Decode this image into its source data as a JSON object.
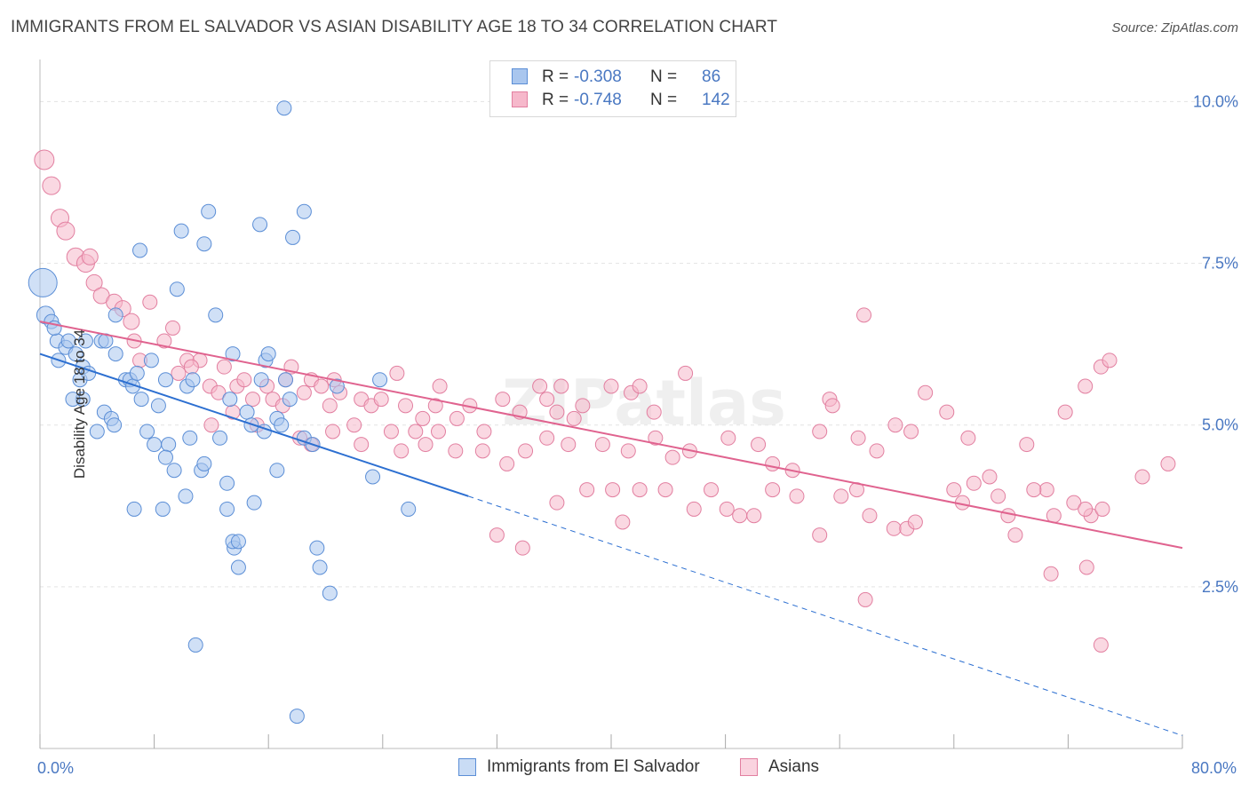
{
  "title": "IMMIGRANTS FROM EL SALVADOR VS ASIAN DISABILITY AGE 18 TO 34 CORRELATION CHART",
  "source": "Source: ZipAtlas.com",
  "watermark": "ZIPatlas",
  "legend_top": {
    "rows": [
      {
        "r_label": "R =",
        "r_value": "-0.308",
        "n_label": "N =",
        "n_value": "86"
      },
      {
        "r_label": "R =",
        "r_value": "-0.748",
        "n_label": "N =",
        "n_value": "142"
      }
    ]
  },
  "legend_bottom": {
    "items": [
      {
        "label": "Immigrants from El Salvador"
      },
      {
        "label": "Asians"
      }
    ]
  },
  "colors": {
    "blue_fill": "#a9c6ee",
    "blue_stroke": "#5b8ed6",
    "blue_line": "#2c6fd1",
    "pink_fill": "#f6b8cb",
    "pink_stroke": "#e27fa0",
    "pink_line": "#e0638f",
    "tick_label": "#4a78c2",
    "grid": "#e3e3e3"
  },
  "chart_data": {
    "type": "scatter",
    "title": "IMMIGRANTS FROM EL SALVADOR VS ASIAN DISABILITY AGE 18 TO 34 CORRELATION CHART",
    "xlabel": "",
    "ylabel": "Disability Age 18 to 34",
    "xlim": [
      0,
      80
    ],
    "ylim": [
      0,
      10.5
    ],
    "x_tick_labels": [
      "0.0%",
      "80.0%"
    ],
    "y_ticks": [
      2.5,
      5.0,
      7.5,
      10.0
    ],
    "y_tick_labels": [
      "2.5%",
      "5.0%",
      "7.5%",
      "10.0%"
    ],
    "grid": true,
    "legend_position": "top-center",
    "series": [
      {
        "name": "Immigrants from El Salvador",
        "color": "#a9c6ee",
        "R": -0.308,
        "N": 86,
        "trend": {
          "x0": 0,
          "y0": 6.1,
          "x1": 30,
          "y1": 3.9,
          "dashed_to_x": 80,
          "dashed_to_y": 0.2
        },
        "points": [
          [
            0.2,
            7.2,
            16
          ],
          [
            0.4,
            6.7,
            10
          ],
          [
            0.8,
            6.6,
            8
          ],
          [
            1.2,
            6.3,
            8
          ],
          [
            1.0,
            6.5,
            8
          ],
          [
            1.8,
            6.2,
            8
          ],
          [
            2.0,
            6.3,
            8
          ],
          [
            2.5,
            6.1,
            8
          ],
          [
            1.3,
            6.0,
            8
          ],
          [
            3.2,
            6.3,
            8
          ],
          [
            3.0,
            5.9,
            8
          ],
          [
            2.8,
            5.7,
            8
          ],
          [
            3.4,
            5.8,
            8
          ],
          [
            3.0,
            5.4,
            8
          ],
          [
            2.3,
            5.4,
            8
          ],
          [
            4.3,
            6.3,
            8
          ],
          [
            4.6,
            6.3,
            8
          ],
          [
            5.3,
            6.7,
            8
          ],
          [
            5.3,
            6.1,
            8
          ],
          [
            6.0,
            5.7,
            8
          ],
          [
            6.3,
            5.7,
            8
          ],
          [
            6.5,
            5.6,
            8
          ],
          [
            6.8,
            5.8,
            8
          ],
          [
            7.1,
            5.4,
            8
          ],
          [
            7.8,
            6.0,
            8
          ],
          [
            4.5,
            5.2,
            8
          ],
          [
            5.0,
            5.1,
            8
          ],
          [
            5.2,
            5.0,
            8
          ],
          [
            4.0,
            4.9,
            8
          ],
          [
            7.5,
            4.9,
            8
          ],
          [
            8.3,
            5.3,
            8
          ],
          [
            8.8,
            5.7,
            8
          ],
          [
            10.3,
            5.6,
            8
          ],
          [
            10.7,
            5.7,
            8
          ],
          [
            7.0,
            7.7,
            8
          ],
          [
            9.6,
            7.1,
            8
          ],
          [
            9.9,
            8.0,
            8
          ],
          [
            11.5,
            7.8,
            8
          ],
          [
            11.8,
            8.3,
            8
          ],
          [
            12.3,
            6.7,
            8
          ],
          [
            13.5,
            6.1,
            8
          ],
          [
            15.4,
            8.1,
            8
          ],
          [
            17.7,
            7.9,
            8
          ],
          [
            18.5,
            8.3,
            8
          ],
          [
            17.1,
            9.9,
            8
          ],
          [
            15.8,
            6.0,
            8
          ],
          [
            16.0,
            6.1,
            8
          ],
          [
            15.5,
            5.7,
            8
          ],
          [
            13.3,
            5.4,
            8
          ],
          [
            14.5,
            5.2,
            8
          ],
          [
            14.8,
            5.0,
            8
          ],
          [
            15.7,
            4.9,
            8
          ],
          [
            16.6,
            5.1,
            8
          ],
          [
            16.9,
            5.0,
            8
          ],
          [
            17.5,
            5.4,
            8
          ],
          [
            17.2,
            5.7,
            8
          ],
          [
            18.5,
            4.8,
            8
          ],
          [
            19.1,
            4.7,
            8
          ],
          [
            20.8,
            5.6,
            8
          ],
          [
            23.8,
            5.7,
            8
          ],
          [
            8.0,
            4.7,
            8
          ],
          [
            9.0,
            4.7,
            8
          ],
          [
            8.8,
            4.5,
            8
          ],
          [
            9.4,
            4.3,
            8
          ],
          [
            10.5,
            4.8,
            8
          ],
          [
            11.3,
            4.3,
            8
          ],
          [
            11.5,
            4.4,
            8
          ],
          [
            12.6,
            4.8,
            8
          ],
          [
            13.1,
            4.1,
            8
          ],
          [
            10.2,
            3.9,
            8
          ],
          [
            6.6,
            3.7,
            8
          ],
          [
            8.6,
            3.7,
            8
          ],
          [
            13.1,
            3.7,
            8
          ],
          [
            15.0,
            3.8,
            8
          ],
          [
            16.6,
            4.3,
            8
          ],
          [
            13.6,
            3.1,
            8
          ],
          [
            13.5,
            3.2,
            8
          ],
          [
            13.9,
            3.2,
            8
          ],
          [
            13.9,
            2.8,
            8
          ],
          [
            19.4,
            3.1,
            8
          ],
          [
            19.6,
            2.8,
            8
          ],
          [
            20.3,
            2.4,
            8
          ],
          [
            23.3,
            4.2,
            8
          ],
          [
            25.8,
            3.7,
            8
          ],
          [
            10.9,
            1.6,
            8
          ],
          [
            18.0,
            0.5,
            8
          ]
        ]
      },
      {
        "name": "Asians",
        "color": "#f6b8cb",
        "R": -0.748,
        "N": 142,
        "trend": {
          "x0": 0,
          "y0": 6.6,
          "x1": 80,
          "y1": 3.1
        },
        "points": [
          [
            0.3,
            9.1,
            11
          ],
          [
            0.8,
            8.7,
            10
          ],
          [
            1.4,
            8.2,
            10
          ],
          [
            1.8,
            8.0,
            10
          ],
          [
            2.5,
            7.6,
            10
          ],
          [
            3.2,
            7.5,
            10
          ],
          [
            3.5,
            7.6,
            9
          ],
          [
            3.8,
            7.2,
            9
          ],
          [
            4.3,
            7.0,
            9
          ],
          [
            5.2,
            6.9,
            9
          ],
          [
            5.8,
            6.8,
            9
          ],
          [
            6.4,
            6.6,
            9
          ],
          [
            7.7,
            6.9,
            8
          ],
          [
            6.6,
            6.3,
            8
          ],
          [
            7.0,
            6.0,
            8
          ],
          [
            8.7,
            6.3,
            8
          ],
          [
            9.3,
            6.5,
            8
          ],
          [
            10.3,
            6.0,
            8
          ],
          [
            11.2,
            6.0,
            8
          ],
          [
            9.7,
            5.8,
            8
          ],
          [
            10.6,
            5.9,
            8
          ],
          [
            11.9,
            5.6,
            8
          ],
          [
            12.5,
            5.5,
            8
          ],
          [
            12.9,
            5.9,
            8
          ],
          [
            13.8,
            5.6,
            8
          ],
          [
            14.3,
            5.7,
            8
          ],
          [
            14.9,
            5.4,
            8
          ],
          [
            15.9,
            5.6,
            8
          ],
          [
            16.3,
            5.4,
            8
          ],
          [
            17.2,
            5.7,
            8
          ],
          [
            17.6,
            5.9,
            8
          ],
          [
            18.5,
            5.5,
            8
          ],
          [
            19.0,
            5.7,
            8
          ],
          [
            19.7,
            5.6,
            8
          ],
          [
            20.3,
            5.3,
            8
          ],
          [
            20.6,
            5.7,
            8
          ],
          [
            21.0,
            5.5,
            8
          ],
          [
            22.0,
            5.0,
            8
          ],
          [
            22.5,
            5.4,
            8
          ],
          [
            23.2,
            5.3,
            8
          ],
          [
            23.9,
            5.4,
            8
          ],
          [
            25.0,
            5.8,
            8
          ],
          [
            25.6,
            5.3,
            8
          ],
          [
            26.8,
            5.1,
            8
          ],
          [
            27.7,
            5.3,
            8
          ],
          [
            28.0,
            5.6,
            8
          ],
          [
            29.2,
            5.1,
            8
          ],
          [
            30.1,
            5.3,
            8
          ],
          [
            31.1,
            4.9,
            8
          ],
          [
            32.4,
            5.4,
            8
          ],
          [
            33.6,
            5.2,
            8
          ],
          [
            35.0,
            5.6,
            8
          ],
          [
            36.2,
            5.2,
            8
          ],
          [
            37.4,
            5.1,
            8
          ],
          [
            38.0,
            5.3,
            8
          ],
          [
            12.0,
            5.0,
            8
          ],
          [
            13.5,
            5.2,
            8
          ],
          [
            15.2,
            5.0,
            8
          ],
          [
            17.0,
            5.3,
            8
          ],
          [
            18.2,
            4.8,
            8
          ],
          [
            19.0,
            4.7,
            8
          ],
          [
            20.5,
            4.9,
            8
          ],
          [
            22.5,
            4.7,
            8
          ],
          [
            24.6,
            4.9,
            8
          ],
          [
            25.3,
            4.6,
            8
          ],
          [
            26.3,
            4.9,
            8
          ],
          [
            27.0,
            4.7,
            8
          ],
          [
            27.9,
            4.9,
            8
          ],
          [
            29.1,
            4.6,
            8
          ],
          [
            31.0,
            4.6,
            8
          ],
          [
            32.7,
            4.4,
            8
          ],
          [
            34.0,
            4.6,
            8
          ],
          [
            35.5,
            4.8,
            8
          ],
          [
            37.0,
            4.7,
            8
          ],
          [
            39.4,
            4.7,
            8
          ],
          [
            41.2,
            4.6,
            8
          ],
          [
            43.1,
            4.8,
            8
          ],
          [
            44.3,
            4.5,
            8
          ],
          [
            45.5,
            4.6,
            8
          ],
          [
            48.2,
            4.8,
            8
          ],
          [
            50.3,
            4.7,
            8
          ],
          [
            51.3,
            4.4,
            8
          ],
          [
            52.7,
            4.3,
            8
          ],
          [
            54.6,
            4.9,
            8
          ],
          [
            55.3,
            5.4,
            8
          ],
          [
            57.3,
            4.8,
            8
          ],
          [
            58.6,
            4.6,
            8
          ],
          [
            59.9,
            5.0,
            8
          ],
          [
            61.0,
            4.9,
            8
          ],
          [
            62.0,
            5.5,
            8
          ],
          [
            63.5,
            5.2,
            8
          ],
          [
            65.0,
            4.8,
            8
          ],
          [
            66.5,
            4.2,
            8
          ],
          [
            69.1,
            4.7,
            8
          ],
          [
            70.5,
            4.0,
            8
          ],
          [
            71.8,
            5.2,
            8
          ],
          [
            73.2,
            5.6,
            8
          ],
          [
            74.3,
            5.9,
            8
          ],
          [
            74.9,
            6.0,
            8
          ],
          [
            77.2,
            4.2,
            8
          ],
          [
            79.0,
            4.4,
            8
          ],
          [
            55.5,
            5.3,
            8
          ],
          [
            35.5,
            5.4,
            8
          ],
          [
            36.5,
            5.6,
            8
          ],
          [
            40.0,
            5.6,
            8
          ],
          [
            41.4,
            5.5,
            8
          ],
          [
            42.0,
            5.6,
            8
          ],
          [
            43.0,
            5.2,
            8
          ],
          [
            45.2,
            5.8,
            8
          ],
          [
            38.3,
            4.0,
            8
          ],
          [
            40.1,
            4.0,
            8
          ],
          [
            40.8,
            3.5,
            8
          ],
          [
            42.0,
            4.0,
            8
          ],
          [
            43.8,
            4.0,
            8
          ],
          [
            45.8,
            3.7,
            8
          ],
          [
            47.0,
            4.0,
            8
          ],
          [
            48.1,
            3.7,
            8
          ],
          [
            49.0,
            3.6,
            8
          ],
          [
            50.0,
            3.6,
            8
          ],
          [
            51.3,
            4.0,
            8
          ],
          [
            53.0,
            3.9,
            8
          ],
          [
            54.6,
            3.3,
            8
          ],
          [
            56.1,
            3.9,
            8
          ],
          [
            57.2,
            4.0,
            8
          ],
          [
            58.1,
            3.6,
            8
          ],
          [
            59.8,
            3.4,
            8
          ],
          [
            60.7,
            3.4,
            8
          ],
          [
            61.3,
            3.5,
            8
          ],
          [
            64.0,
            4.0,
            8
          ],
          [
            64.6,
            3.8,
            8
          ],
          [
            65.4,
            4.1,
            8
          ],
          [
            67.1,
            3.9,
            8
          ],
          [
            67.8,
            3.6,
            8
          ],
          [
            68.3,
            3.3,
            8
          ],
          [
            69.6,
            4.0,
            8
          ],
          [
            71.0,
            3.6,
            8
          ],
          [
            72.4,
            3.8,
            8
          ],
          [
            73.6,
            3.6,
            8
          ],
          [
            74.4,
            3.7,
            8
          ],
          [
            73.2,
            3.7,
            8
          ],
          [
            70.8,
            2.7,
            8
          ],
          [
            73.3,
            2.8,
            8
          ],
          [
            57.8,
            2.3,
            8
          ],
          [
            74.3,
            1.6,
            8
          ],
          [
            32.0,
            3.3,
            8
          ],
          [
            36.2,
            3.8,
            8
          ],
          [
            33.8,
            3.1,
            8
          ],
          [
            57.7,
            6.7,
            8
          ]
        ]
      }
    ]
  }
}
